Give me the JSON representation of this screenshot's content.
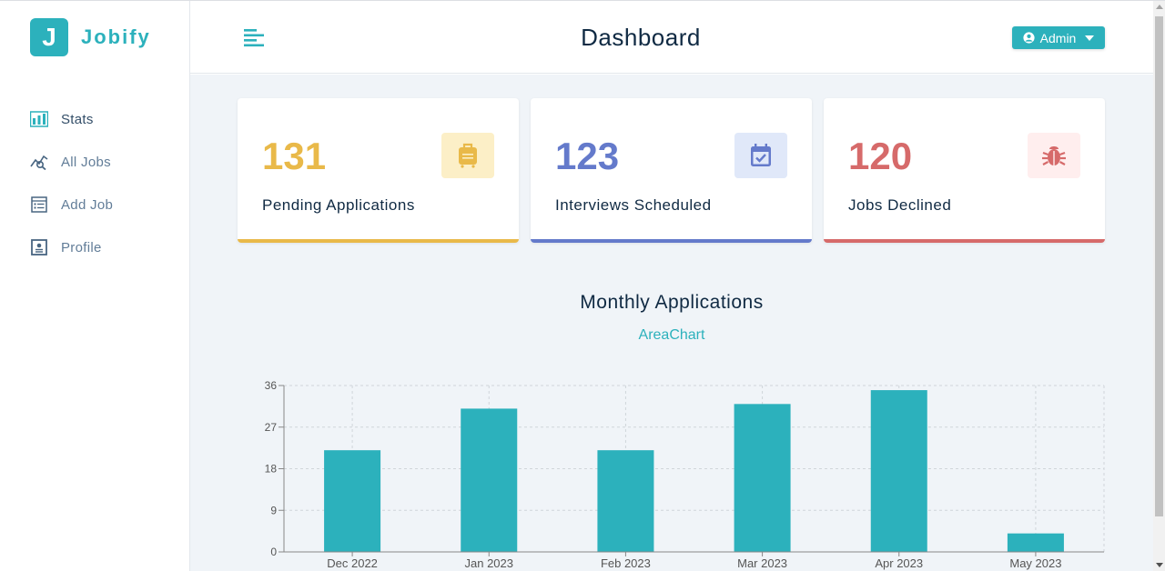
{
  "brand": {
    "logo_letter": "J",
    "name": "Jobify",
    "color": "#2cb1bc"
  },
  "header": {
    "title": "Dashboard",
    "user_label": "Admin"
  },
  "sidebar": {
    "items": [
      {
        "label": "Stats",
        "icon": "bar-chart-icon",
        "active": true
      },
      {
        "label": "All Jobs",
        "icon": "query-stats-icon",
        "active": false
      },
      {
        "label": "Add Job",
        "icon": "form-icon",
        "active": false
      },
      {
        "label": "Profile",
        "icon": "id-card-icon",
        "active": false
      }
    ]
  },
  "stats": [
    {
      "value": "131",
      "label": "Pending Applications",
      "icon": "suitcase-icon",
      "color": "#e9b949",
      "bg": "#fcefc7"
    },
    {
      "value": "123",
      "label": "Interviews Scheduled",
      "icon": "calendar-check-icon",
      "color": "#647acb",
      "bg": "#e0e8f9"
    },
    {
      "value": "120",
      "label": "Jobs Declined",
      "icon": "bug-icon",
      "color": "#d66a6a",
      "bg": "#ffeeee"
    }
  ],
  "chart_section": {
    "title": "Monthly Applications",
    "toggle_label": "AreaChart"
  },
  "chart_data": {
    "type": "bar",
    "categories": [
      "Dec 2022",
      "Jan 2023",
      "Feb 2023",
      "Mar 2023",
      "Apr 2023",
      "May 2023"
    ],
    "values": [
      22,
      31,
      22,
      32,
      35,
      4
    ],
    "ylim": [
      0,
      36
    ],
    "yticks": [
      0,
      9,
      18,
      27,
      36
    ],
    "grid": true,
    "color": "#2cb1bc"
  }
}
